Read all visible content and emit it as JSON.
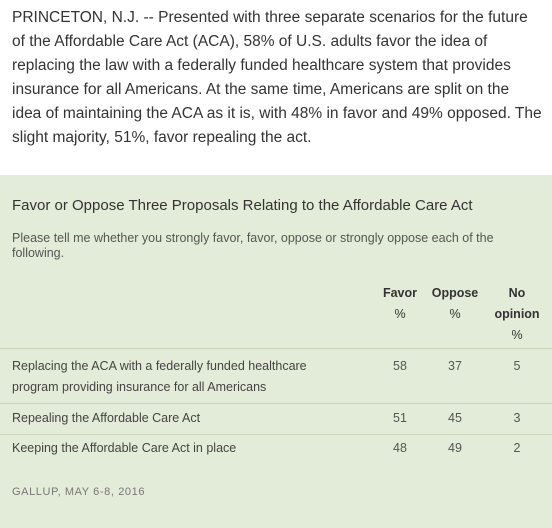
{
  "intro_text": "PRINCETON, N.J. -- Presented with three separate scenarios for the future of the Affordable Care Act (ACA), 58% of U.S. adults favor the idea of replacing the law with a federally funded healthcare system that provides insurance for all Americans. At the same time, Americans are split on the idea of maintaining the ACA as it is, with 48% in favor and 49% opposed. The slight majority, 51%, favor repealing the act.",
  "table": {
    "title": "Favor or Oppose Three Proposals Relating to the Affordable Care Act",
    "question": "Please tell me whether you strongly favor, favor, oppose or strongly oppose each of the following.",
    "columns": [
      {
        "header": "Favor",
        "unit": "%"
      },
      {
        "header": "Oppose",
        "unit": "%"
      },
      {
        "header_line1": "No",
        "header_line2": "opinion",
        "unit": "%"
      }
    ],
    "rows": [
      {
        "label": "Replacing the ACA with a federally funded healthcare program providing insurance for all Americans",
        "favor": "58",
        "oppose": "37",
        "no_opinion": "5"
      },
      {
        "label": "Repealing the Affordable Care Act",
        "favor": "51",
        "oppose": "45",
        "no_opinion": "3"
      },
      {
        "label": "Keeping the Affordable Care Act in place",
        "favor": "48",
        "oppose": "49",
        "no_opinion": "2"
      }
    ],
    "source": "GALLUP, MAY 6-8, 2016"
  }
}
